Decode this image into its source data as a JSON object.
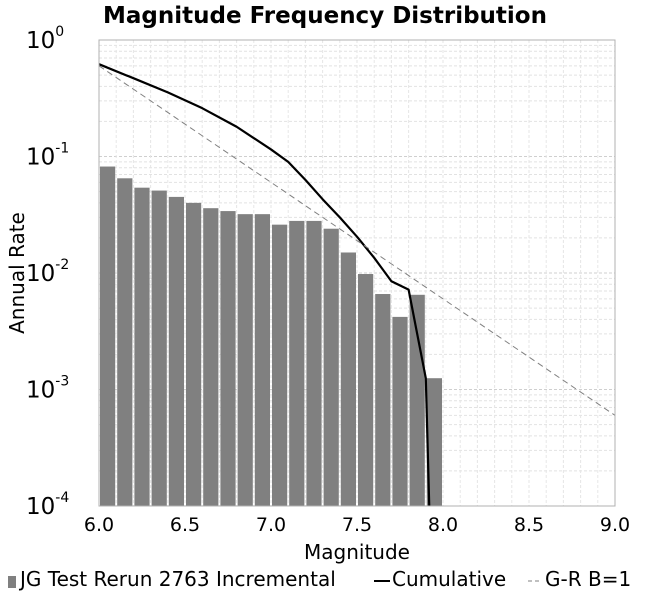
{
  "chart_data": {
    "type": "bar",
    "title": "Magnitude Frequency Distribution",
    "xlabel": "Magnitude",
    "ylabel": "Annual Rate",
    "xlim": [
      6.0,
      9.0
    ],
    "ylim": [
      0.0001,
      1
    ],
    "y_scale": "log",
    "x_ticks": [
      "6.0",
      "6.5",
      "7.0",
      "7.5",
      "8.0",
      "8.5",
      "9.0"
    ],
    "y_ticks": [
      {
        "base": "10",
        "exp": "0",
        "value": 1
      },
      {
        "base": "10",
        "exp": "-1",
        "value": 0.1
      },
      {
        "base": "10",
        "exp": "-2",
        "value": 0.01
      },
      {
        "base": "10",
        "exp": "-3",
        "value": 0.001
      },
      {
        "base": "10",
        "exp": "-4",
        "value": 0.0001
      }
    ],
    "grid": true,
    "legend_position": "bottom",
    "series": [
      {
        "name": "JG Test Rerun 2763 Incremental",
        "kind": "bar",
        "color": "#808080",
        "x": [
          6.05,
          6.15,
          6.25,
          6.35,
          6.45,
          6.55,
          6.65,
          6.75,
          6.85,
          6.95,
          7.05,
          7.15,
          7.25,
          7.35,
          7.45,
          7.55,
          7.65,
          7.75,
          7.85,
          7.95
        ],
        "values": [
          0.082,
          0.065,
          0.054,
          0.051,
          0.045,
          0.04,
          0.036,
          0.034,
          0.032,
          0.032,
          0.026,
          0.028,
          0.028,
          0.024,
          0.015,
          0.0098,
          0.0066,
          0.0042,
          0.0065,
          0.00125
        ]
      },
      {
        "name": "Cumulative",
        "kind": "line",
        "color": "#000000",
        "x": [
          6.0,
          6.2,
          6.4,
          6.6,
          6.8,
          7.0,
          7.1,
          7.2,
          7.3,
          7.4,
          7.5,
          7.6,
          7.7,
          7.8,
          7.9,
          7.92
        ],
        "values": [
          0.62,
          0.47,
          0.355,
          0.26,
          0.18,
          0.115,
          0.09,
          0.063,
          0.043,
          0.03,
          0.0205,
          0.0135,
          0.0085,
          0.0072,
          0.00125,
          0.0001
        ]
      },
      {
        "name": "G-R B=1",
        "kind": "dashed-line",
        "color": "#808080",
        "x": [
          6.0,
          9.0
        ],
        "values": [
          0.6,
          0.0006
        ]
      }
    ]
  }
}
